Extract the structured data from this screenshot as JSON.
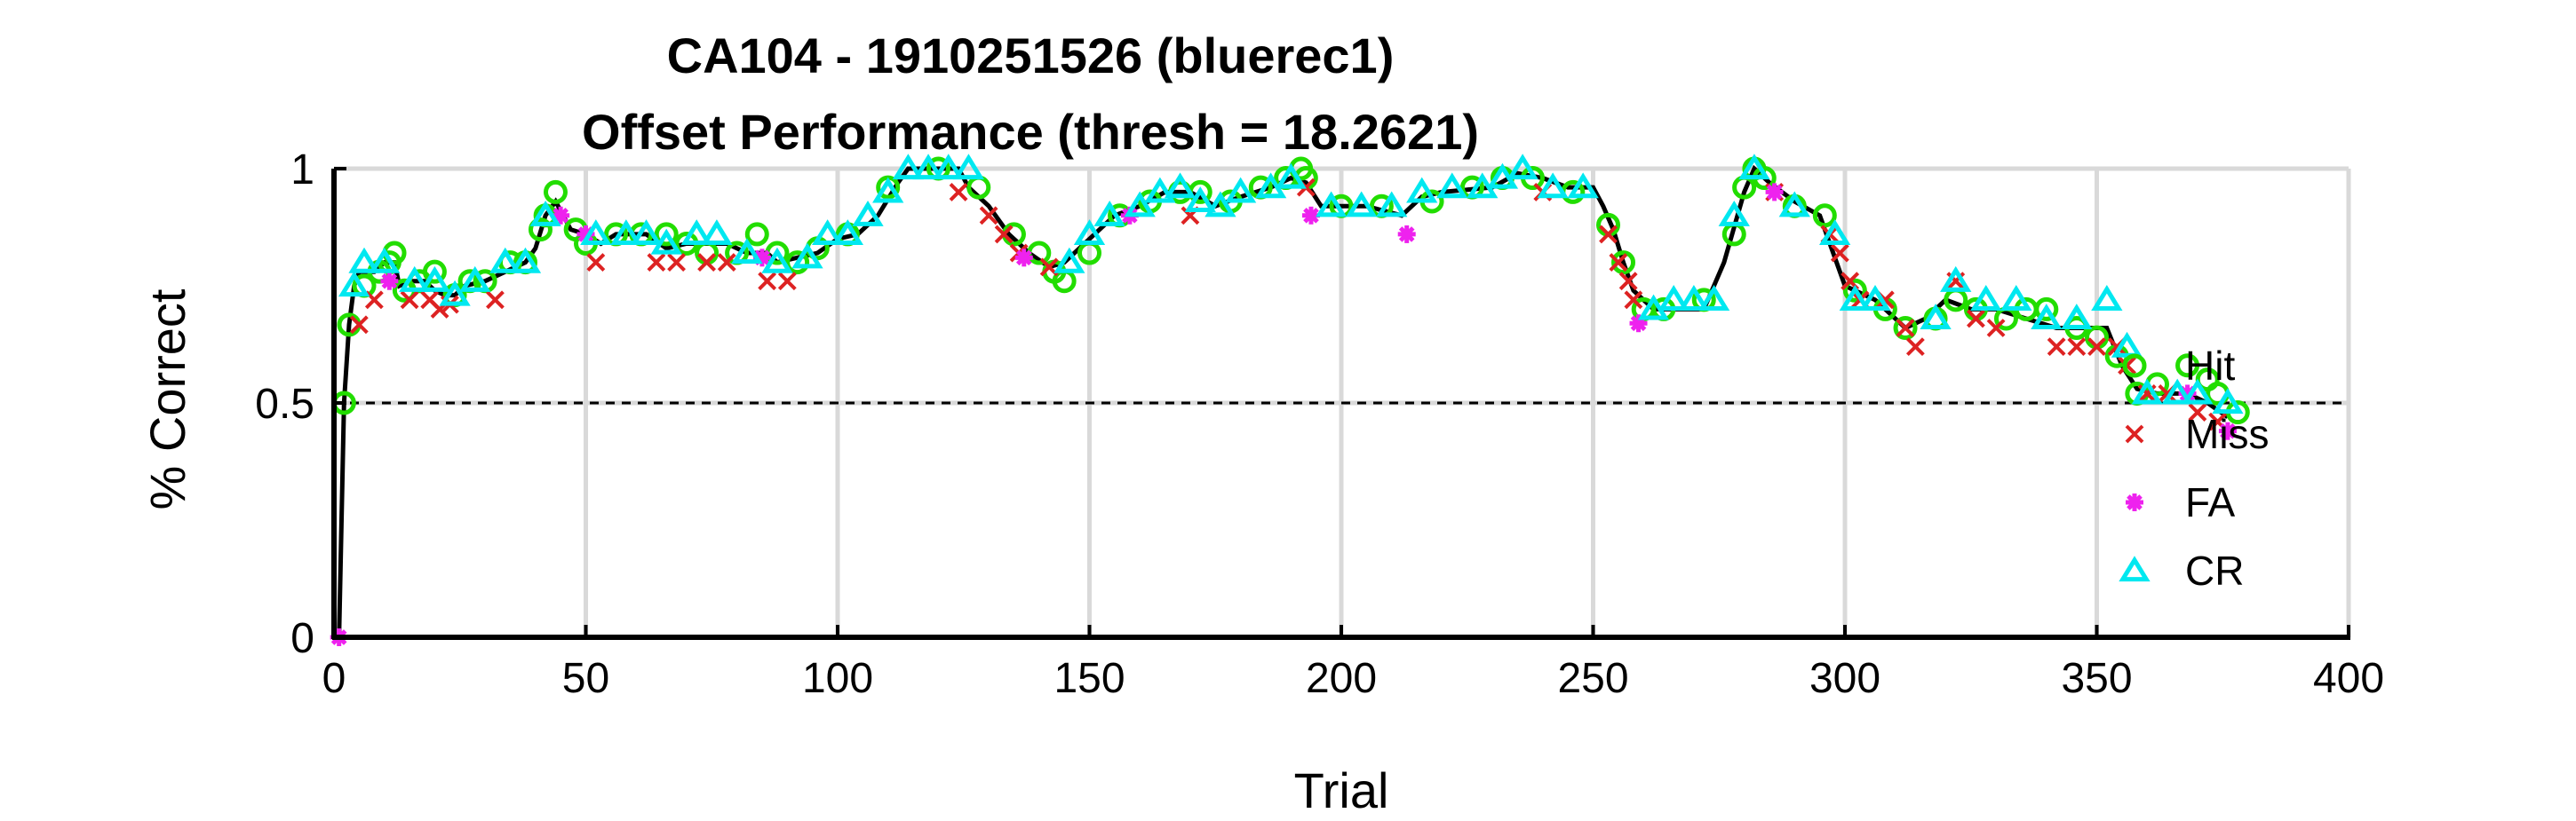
{
  "chart_data": {
    "type": "line",
    "title": "CA104 - 1910251526 (bluerec1)",
    "subtitle": "Offset Performance (thresh = 18.2621)",
    "xlabel": "Trial",
    "ylabel": "% Correct",
    "xlim": [
      0,
      400
    ],
    "ylim": [
      0,
      1
    ],
    "xticks": [
      "0",
      "50",
      "100",
      "150",
      "200",
      "250",
      "300",
      "350",
      "400"
    ],
    "yticks": [
      "0",
      "0.5",
      "1"
    ],
    "grid": true,
    "reference_line": 0.5,
    "legend_position": "right",
    "line_points": [
      [
        1,
        0
      ],
      [
        2,
        0.5
      ],
      [
        3,
        0.667
      ],
      [
        4,
        0.75
      ],
      [
        5,
        0.78
      ],
      [
        8,
        0.78
      ],
      [
        10,
        0.8
      ],
      [
        12,
        0.8
      ],
      [
        13,
        0.75
      ],
      [
        15,
        0.76
      ],
      [
        18,
        0.76
      ],
      [
        20,
        0.74
      ],
      [
        22,
        0.73
      ],
      [
        24,
        0.73
      ],
      [
        26,
        0.75
      ],
      [
        30,
        0.76
      ],
      [
        34,
        0.78
      ],
      [
        38,
        0.8
      ],
      [
        40,
        0.83
      ],
      [
        42,
        0.9
      ],
      [
        44,
        0.93
      ],
      [
        47,
        0.87
      ],
      [
        50,
        0.86
      ],
      [
        53,
        0.84
      ],
      [
        56,
        0.86
      ],
      [
        62,
        0.86
      ],
      [
        66,
        0.83
      ],
      [
        70,
        0.84
      ],
      [
        74,
        0.84
      ],
      [
        78,
        0.84
      ],
      [
        82,
        0.82
      ],
      [
        86,
        0.82
      ],
      [
        88,
        0.8
      ],
      [
        92,
        0.81
      ],
      [
        96,
        0.82
      ],
      [
        100,
        0.85
      ],
      [
        104,
        0.86
      ],
      [
        108,
        0.9
      ],
      [
        112,
        0.97
      ],
      [
        114,
        1
      ],
      [
        124,
        1
      ],
      [
        126,
        0.96
      ],
      [
        130,
        0.92
      ],
      [
        134,
        0.86
      ],
      [
        138,
        0.82
      ],
      [
        142,
        0.79
      ],
      [
        145,
        0.8
      ],
      [
        150,
        0.85
      ],
      [
        155,
        0.9
      ],
      [
        160,
        0.92
      ],
      [
        165,
        0.95
      ],
      [
        170,
        0.95
      ],
      [
        175,
        0.92
      ],
      [
        180,
        0.94
      ],
      [
        186,
        0.96
      ],
      [
        190,
        0.98
      ],
      [
        193,
        0.97
      ],
      [
        196,
        0.92
      ],
      [
        205,
        0.92
      ],
      [
        212,
        0.9
      ],
      [
        216,
        0.94
      ],
      [
        220,
        0.95
      ],
      [
        230,
        0.96
      ],
      [
        235,
        0.99
      ],
      [
        240,
        0.98
      ],
      [
        245,
        0.96
      ],
      [
        250,
        0.96
      ],
      [
        252,
        0.92
      ],
      [
        254,
        0.87
      ],
      [
        256,
        0.8
      ],
      [
        258,
        0.74
      ],
      [
        262,
        0.7
      ],
      [
        272,
        0.7
      ],
      [
        276,
        0.8
      ],
      [
        280,
        0.95
      ],
      [
        282,
        1
      ],
      [
        285,
        0.97
      ],
      [
        290,
        0.93
      ],
      [
        295,
        0.9
      ],
      [
        297,
        0.84
      ],
      [
        300,
        0.75
      ],
      [
        306,
        0.72
      ],
      [
        312,
        0.66
      ],
      [
        316,
        0.68
      ],
      [
        320,
        0.72
      ],
      [
        325,
        0.7
      ],
      [
        330,
        0.7
      ],
      [
        336,
        0.68
      ],
      [
        342,
        0.66
      ],
      [
        348,
        0.66
      ],
      [
        352,
        0.66
      ],
      [
        355,
        0.58
      ],
      [
        358,
        0.53
      ],
      [
        362,
        0.52
      ],
      [
        368,
        0.52
      ],
      [
        372,
        0.5
      ],
      [
        376,
        0.47
      ]
    ],
    "series": [
      {
        "name": "Hit",
        "marker": "circle",
        "color": "#22dd00",
        "points": [
          [
            2,
            0.5
          ],
          [
            3,
            0.667
          ],
          [
            6,
            0.75
          ],
          [
            9,
            0.78
          ],
          [
            11,
            0.8
          ],
          [
            12,
            0.82
          ],
          [
            14,
            0.74
          ],
          [
            17,
            0.76
          ],
          [
            20,
            0.78
          ],
          [
            24,
            0.73
          ],
          [
            27,
            0.76
          ],
          [
            30,
            0.76
          ],
          [
            35,
            0.8
          ],
          [
            38,
            0.8
          ],
          [
            41,
            0.87
          ],
          [
            42,
            0.9
          ],
          [
            44,
            0.95
          ],
          [
            48,
            0.87
          ],
          [
            50,
            0.84
          ],
          [
            56,
            0.86
          ],
          [
            61,
            0.86
          ],
          [
            66,
            0.86
          ],
          [
            70,
            0.84
          ],
          [
            74,
            0.82
          ],
          [
            80,
            0.82
          ],
          [
            84,
            0.86
          ],
          [
            88,
            0.82
          ],
          [
            92,
            0.8
          ],
          [
            96,
            0.83
          ],
          [
            102,
            0.86
          ],
          [
            110,
            0.96
          ],
          [
            120,
            1
          ],
          [
            128,
            0.96
          ],
          [
            135,
            0.86
          ],
          [
            140,
            0.82
          ],
          [
            143,
            0.78
          ],
          [
            145,
            0.76
          ],
          [
            150,
            0.82
          ],
          [
            156,
            0.9
          ],
          [
            162,
            0.93
          ],
          [
            168,
            0.95
          ],
          [
            172,
            0.95
          ],
          [
            178,
            0.93
          ],
          [
            184,
            0.96
          ],
          [
            189,
            0.98
          ],
          [
            192,
            1
          ],
          [
            193,
            0.98
          ],
          [
            200,
            0.92
          ],
          [
            208,
            0.92
          ],
          [
            218,
            0.93
          ],
          [
            226,
            0.96
          ],
          [
            232,
            0.98
          ],
          [
            238,
            0.98
          ],
          [
            246,
            0.95
          ],
          [
            253,
            0.88
          ],
          [
            256,
            0.8
          ],
          [
            260,
            0.7
          ],
          [
            264,
            0.7
          ],
          [
            272,
            0.72
          ],
          [
            278,
            0.86
          ],
          [
            280,
            0.96
          ],
          [
            282,
            1
          ],
          [
            284,
            0.98
          ],
          [
            290,
            0.92
          ],
          [
            296,
            0.9
          ],
          [
            302,
            0.74
          ],
          [
            308,
            0.7
          ],
          [
            312,
            0.66
          ],
          [
            318,
            0.68
          ],
          [
            322,
            0.72
          ],
          [
            326,
            0.7
          ],
          [
            332,
            0.68
          ],
          [
            336,
            0.7
          ],
          [
            340,
            0.7
          ],
          [
            346,
            0.66
          ],
          [
            350,
            0.64
          ],
          [
            354,
            0.6
          ],
          [
            358,
            0.52
          ],
          [
            362,
            0.54
          ],
          [
            368,
            0.58
          ],
          [
            372,
            0.55
          ],
          [
            374,
            0.52
          ],
          [
            378,
            0.48
          ]
        ]
      },
      {
        "name": "Miss",
        "marker": "x",
        "color": "#dd2222",
        "points": [
          [
            5,
            0.667
          ],
          [
            8,
            0.72
          ],
          [
            15,
            0.72
          ],
          [
            19,
            0.72
          ],
          [
            21,
            0.7
          ],
          [
            23,
            0.71
          ],
          [
            32,
            0.72
          ],
          [
            52,
            0.8
          ],
          [
            64,
            0.8
          ],
          [
            68,
            0.8
          ],
          [
            74,
            0.8
          ],
          [
            78,
            0.8
          ],
          [
            86,
            0.76
          ],
          [
            90,
            0.76
          ],
          [
            124,
            0.95
          ],
          [
            130,
            0.9
          ],
          [
            133,
            0.86
          ],
          [
            136,
            0.82
          ],
          [
            142,
            0.79
          ],
          [
            170,
            0.9
          ],
          [
            193,
            0.96
          ],
          [
            240,
            0.95
          ],
          [
            253,
            0.86
          ],
          [
            255,
            0.8
          ],
          [
            257,
            0.76
          ],
          [
            258,
            0.72
          ],
          [
            286,
            0.95
          ],
          [
            297,
            0.86
          ],
          [
            299,
            0.82
          ],
          [
            301,
            0.76
          ],
          [
            303,
            0.72
          ],
          [
            308,
            0.72
          ],
          [
            312,
            0.66
          ],
          [
            314,
            0.62
          ],
          [
            322,
            0.76
          ],
          [
            326,
            0.68
          ],
          [
            330,
            0.66
          ],
          [
            342,
            0.62
          ],
          [
            346,
            0.62
          ],
          [
            350,
            0.62
          ],
          [
            354,
            0.62
          ],
          [
            356,
            0.58
          ],
          [
            360,
            0.52
          ],
          [
            364,
            0.52
          ],
          [
            370,
            0.48
          ],
          [
            374,
            0.46
          ]
        ]
      },
      {
        "name": "FA",
        "marker": "star",
        "color": "#ee22ee",
        "points": [
          [
            1,
            0
          ],
          [
            11,
            0.76
          ],
          [
            45,
            0.9
          ],
          [
            50,
            0.86
          ],
          [
            85,
            0.81
          ],
          [
            137,
            0.81
          ],
          [
            158,
            0.9
          ],
          [
            194,
            0.9
          ],
          [
            213,
            0.86
          ],
          [
            259,
            0.67
          ],
          [
            286,
            0.95
          ],
          [
            368,
            0.52
          ],
          [
            376,
            0.44
          ]
        ]
      },
      {
        "name": "CR",
        "marker": "triangle",
        "color": "#00e8f0",
        "points": [
          [
            4,
            0.75
          ],
          [
            6,
            0.8
          ],
          [
            10,
            0.8
          ],
          [
            16,
            0.76
          ],
          [
            20,
            0.76
          ],
          [
            24,
            0.73
          ],
          [
            28,
            0.76
          ],
          [
            34,
            0.8
          ],
          [
            38,
            0.8
          ],
          [
            42,
            0.9
          ],
          [
            52,
            0.86
          ],
          [
            58,
            0.86
          ],
          [
            62,
            0.86
          ],
          [
            66,
            0.84
          ],
          [
            72,
            0.86
          ],
          [
            76,
            0.86
          ],
          [
            82,
            0.82
          ],
          [
            88,
            0.8
          ],
          [
            94,
            0.81
          ],
          [
            98,
            0.86
          ],
          [
            102,
            0.86
          ],
          [
            106,
            0.9
          ],
          [
            110,
            0.95
          ],
          [
            114,
            1
          ],
          [
            118,
            1
          ],
          [
            122,
            1
          ],
          [
            126,
            1
          ],
          [
            146,
            0.8
          ],
          [
            150,
            0.86
          ],
          [
            154,
            0.9
          ],
          [
            160,
            0.92
          ],
          [
            164,
            0.95
          ],
          [
            168,
            0.96
          ],
          [
            172,
            0.93
          ],
          [
            176,
            0.92
          ],
          [
            180,
            0.95
          ],
          [
            186,
            0.96
          ],
          [
            190,
            0.98
          ],
          [
            198,
            0.92
          ],
          [
            204,
            0.92
          ],
          [
            210,
            0.92
          ],
          [
            216,
            0.95
          ],
          [
            222,
            0.96
          ],
          [
            228,
            0.96
          ],
          [
            232,
            0.98
          ],
          [
            236,
            1
          ],
          [
            242,
            0.96
          ],
          [
            248,
            0.96
          ],
          [
            262,
            0.7
          ],
          [
            266,
            0.72
          ],
          [
            270,
            0.72
          ],
          [
            274,
            0.72
          ],
          [
            278,
            0.9
          ],
          [
            282,
            1
          ],
          [
            290,
            0.92
          ],
          [
            298,
            0.86
          ],
          [
            302,
            0.72
          ],
          [
            306,
            0.72
          ],
          [
            318,
            0.68
          ],
          [
            322,
            0.76
          ],
          [
            328,
            0.72
          ],
          [
            334,
            0.72
          ],
          [
            340,
            0.68
          ],
          [
            346,
            0.68
          ],
          [
            352,
            0.72
          ],
          [
            356,
            0.62
          ],
          [
            360,
            0.52
          ],
          [
            366,
            0.52
          ],
          [
            370,
            0.52
          ],
          [
            376,
            0.5
          ]
        ]
      }
    ]
  }
}
